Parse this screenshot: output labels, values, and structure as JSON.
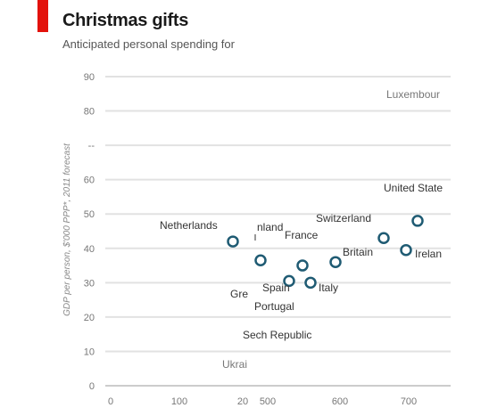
{
  "header": {
    "title": "Christmas gifts",
    "subtitle": "Anticipated personal spending for"
  },
  "chart_data": {
    "type": "scatter",
    "title": "Christmas gifts",
    "subtitle": "Anticipated personal spending for",
    "ylabel": "GDP per person, $'000 PPP*, 2011 forecast",
    "xlabel": "",
    "ylim": [
      0,
      90
    ],
    "y_ticks": [
      "0",
      "10",
      "20",
      "30",
      "40",
      "50",
      "60",
      "--",
      "80",
      "90"
    ],
    "x_ticks": [
      "0",
      "100",
      "20",
      "500",
      "600",
      "700"
    ],
    "grid": true,
    "accent_color": "#1f5b73",
    "brand_color": "#e3120b",
    "points": [
      {
        "name": "Netherlands",
        "y": 42,
        "marker": true
      },
      {
        "name": "nland",
        "y": 36.5,
        "marker": true
      },
      {
        "name": "France",
        "y": 35,
        "marker": true
      },
      {
        "name": "Spain",
        "y": 30.5,
        "marker": true
      },
      {
        "name": "Italy",
        "y": 30,
        "marker": true
      },
      {
        "name": "Britain",
        "y": 36,
        "marker": true
      },
      {
        "name": "Switzerland",
        "y": 43,
        "marker": true
      },
      {
        "name": "Irelan",
        "y": 39.5,
        "marker": true
      },
      {
        "name": "United State",
        "y": 48,
        "marker": true
      },
      {
        "name": "Luxembour",
        "y": 82,
        "marker": false
      },
      {
        "name": "Gre",
        "y": 26,
        "marker": false
      },
      {
        "name": "Portugal",
        "y": 22,
        "marker": false
      },
      {
        "name": "Sech Republic",
        "y": 14,
        "marker": false
      },
      {
        "name": "Ukrai",
        "y": 6,
        "marker": false
      }
    ]
  }
}
